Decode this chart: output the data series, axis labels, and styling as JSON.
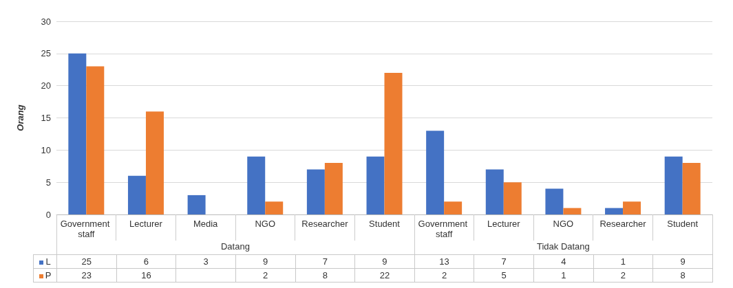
{
  "chart_data": {
    "type": "bar",
    "ylabel": "Orang",
    "categories": [
      "Government staff",
      "Lecturer",
      "Media",
      "NGO",
      "Researcher",
      "Student",
      "Government staff",
      "Lecturer",
      "NGO",
      "Researcher",
      "Student"
    ],
    "annotations": [
      "Datang",
      "Tidak Datang"
    ],
    "series": [
      {
        "name": "L",
        "color": "#4472c4",
        "values": [
          25,
          6,
          3,
          9,
          7,
          9,
          13,
          7,
          4,
          1,
          9
        ]
      },
      {
        "name": "P",
        "color": "#ed7d31",
        "values": [
          23,
          16,
          null,
          2,
          8,
          22,
          2,
          5,
          1,
          2,
          8
        ]
      }
    ],
    "ylim": [
      0,
      30
    ],
    "yticks": [
      0,
      5,
      10,
      15,
      20,
      25,
      30
    ],
    "grid": "y",
    "legend": "bottom left",
    "data_labels": true
  }
}
